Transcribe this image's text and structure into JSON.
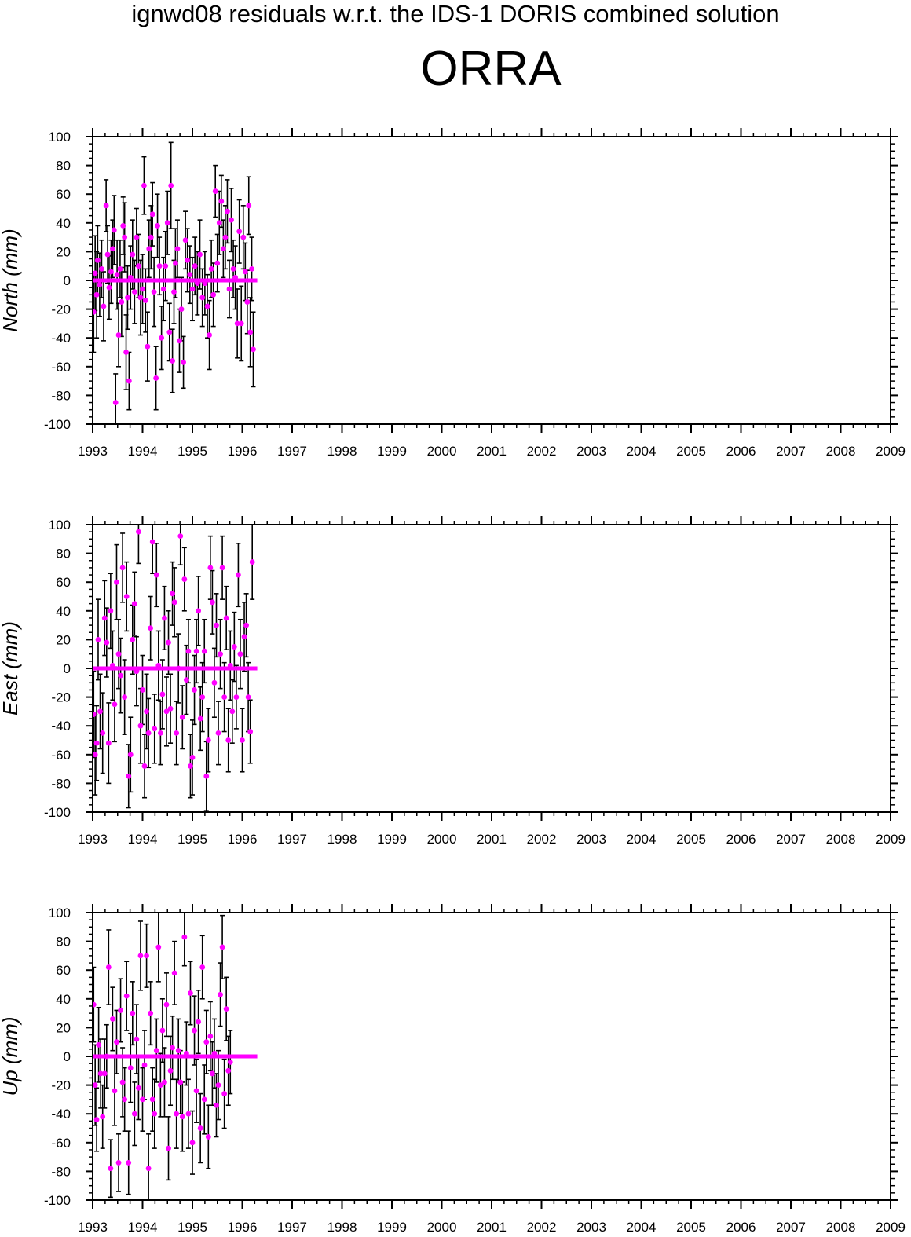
{
  "title": "ignwd08 residuals w.r.t. the IDS-1 DORIS combined solution",
  "station": "ORRA",
  "colors": {
    "marker": "#ff00ff",
    "error_bar": "#000000",
    "axes": "#000000"
  },
  "chart_data": [
    {
      "type": "scatter",
      "component": "North",
      "ylabel": "North (mm)",
      "xlim": [
        1993,
        2009
      ],
      "ylim": [
        -100,
        100
      ],
      "x_ticks": [
        "1993",
        "1994",
        "1995",
        "1996",
        "1997",
        "1998",
        "1999",
        "2000",
        "2001",
        "2002",
        "2003",
        "2004",
        "2005",
        "2006",
        "2007",
        "2008",
        "2009"
      ],
      "y_ticks": [
        "100",
        "80",
        "60",
        "40",
        "20",
        "0",
        "-20",
        "-40",
        "-60",
        "-80",
        "-100"
      ],
      "zero_line": [
        1993.0,
        1996.3
      ],
      "points": [
        [
          1993.02,
          -22,
          28
        ],
        [
          1993.05,
          5,
          26
        ],
        [
          1993.08,
          -10,
          30
        ],
        [
          1993.1,
          14,
          24
        ],
        [
          1993.14,
          -3,
          22
        ],
        [
          1993.18,
          8,
          20
        ],
        [
          1993.22,
          -18,
          24
        ],
        [
          1993.27,
          52,
          18
        ],
        [
          1993.3,
          18,
          20
        ],
        [
          1993.33,
          -5,
          22
        ],
        [
          1993.37,
          6,
          22
        ],
        [
          1993.4,
          22,
          20
        ],
        [
          1993.43,
          35,
          24
        ],
        [
          1993.46,
          -85,
          20
        ],
        [
          1993.49,
          4,
          24
        ],
        [
          1993.52,
          -38,
          22
        ],
        [
          1993.55,
          8,
          20
        ],
        [
          1993.58,
          -15,
          24
        ],
        [
          1993.61,
          38,
          20
        ],
        [
          1993.64,
          30,
          24
        ],
        [
          1993.67,
          -50,
          26
        ],
        [
          1993.7,
          -12,
          22
        ],
        [
          1993.73,
          -70,
          20
        ],
        [
          1993.76,
          2,
          22
        ],
        [
          1993.8,
          18,
          24
        ],
        [
          1993.84,
          -8,
          22
        ],
        [
          1993.88,
          30,
          20
        ],
        [
          1993.92,
          10,
          22
        ],
        [
          1993.96,
          -12,
          26
        ],
        [
          1994.0,
          -6,
          24
        ],
        [
          1994.03,
          66,
          20
        ],
        [
          1994.06,
          -14,
          22
        ],
        [
          1994.1,
          -46,
          24
        ],
        [
          1994.13,
          22,
          20
        ],
        [
          1994.17,
          30,
          22
        ],
        [
          1994.2,
          46,
          22
        ],
        [
          1994.23,
          -8,
          24
        ],
        [
          1994.27,
          -68,
          22
        ],
        [
          1994.3,
          38,
          22
        ],
        [
          1994.34,
          10,
          20
        ],
        [
          1994.38,
          -40,
          22
        ],
        [
          1994.42,
          -6,
          22
        ],
        [
          1994.46,
          10,
          24
        ],
        [
          1994.5,
          40,
          22
        ],
        [
          1994.54,
          -36,
          20
        ],
        [
          1994.57,
          66,
          30
        ],
        [
          1994.6,
          -56,
          22
        ],
        [
          1994.63,
          -8,
          22
        ],
        [
          1994.66,
          12,
          24
        ],
        [
          1994.7,
          22,
          20
        ],
        [
          1994.74,
          -42,
          22
        ],
        [
          1994.78,
          -20,
          22
        ],
        [
          1994.82,
          -57,
          18
        ],
        [
          1994.86,
          28,
          20
        ],
        [
          1994.9,
          14,
          22
        ],
        [
          1994.95,
          4,
          20
        ],
        [
          1995.0,
          -6,
          22
        ],
        [
          1995.05,
          10,
          20
        ],
        [
          1995.1,
          -2,
          22
        ],
        [
          1995.15,
          18,
          24
        ],
        [
          1995.2,
          -12,
          20
        ],
        [
          1995.25,
          -2,
          22
        ],
        [
          1995.3,
          -18,
          22
        ],
        [
          1995.34,
          -38,
          24
        ],
        [
          1995.38,
          8,
          20
        ],
        [
          1995.42,
          -10,
          22
        ],
        [
          1995.46,
          62,
          18
        ],
        [
          1995.5,
          12,
          20
        ],
        [
          1995.54,
          40,
          22
        ],
        [
          1995.58,
          55,
          18
        ],
        [
          1995.62,
          22,
          20
        ],
        [
          1995.66,
          30,
          22
        ],
        [
          1995.7,
          48,
          22
        ],
        [
          1995.74,
          -6,
          20
        ],
        [
          1995.78,
          42,
          22
        ],
        [
          1995.82,
          8,
          20
        ],
        [
          1995.86,
          2,
          22
        ],
        [
          1995.9,
          -30,
          24
        ],
        [
          1995.94,
          34,
          22
        ],
        [
          1995.98,
          -30,
          26
        ],
        [
          1996.02,
          30,
          22
        ],
        [
          1996.06,
          6,
          20
        ],
        [
          1996.1,
          -15,
          22
        ],
        [
          1996.13,
          52,
          20
        ],
        [
          1996.16,
          -36,
          24
        ],
        [
          1996.19,
          8,
          22
        ],
        [
          1996.22,
          -48,
          26
        ]
      ]
    },
    {
      "type": "scatter",
      "component": "East",
      "ylabel": "East (mm)",
      "xlim": [
        1993,
        2009
      ],
      "ylim": [
        -100,
        100
      ],
      "x_ticks": [
        "1993",
        "1994",
        "1995",
        "1996",
        "1997",
        "1998",
        "1999",
        "2000",
        "2001",
        "2002",
        "2003",
        "2004",
        "2005",
        "2006",
        "2007",
        "2008",
        "2009"
      ],
      "y_ticks": [
        "100",
        "80",
        "60",
        "40",
        "20",
        "0",
        "-20",
        "-40",
        "-60",
        "-80",
        "-100"
      ],
      "zero_line": [
        1993.0,
        1996.3
      ],
      "points": [
        [
          1993.02,
          -32,
          30
        ],
        [
          1993.05,
          -60,
          28
        ],
        [
          1993.08,
          -52,
          26
        ],
        [
          1993.11,
          20,
          28
        ],
        [
          1993.15,
          -30,
          26
        ],
        [
          1993.2,
          -45,
          28
        ],
        [
          1993.24,
          35,
          26
        ],
        [
          1993.28,
          18,
          24
        ],
        [
          1993.32,
          -52,
          28
        ],
        [
          1993.36,
          40,
          26
        ],
        [
          1993.4,
          2,
          24
        ],
        [
          1993.44,
          -25,
          26
        ],
        [
          1993.48,
          60,
          26
        ],
        [
          1993.52,
          10,
          24
        ],
        [
          1993.56,
          -5,
          26
        ],
        [
          1993.6,
          70,
          24
        ],
        [
          1993.64,
          -20,
          26
        ],
        [
          1993.68,
          50,
          24
        ],
        [
          1993.72,
          -75,
          22
        ],
        [
          1993.76,
          -60,
          26
        ],
        [
          1993.8,
          20,
          24
        ],
        [
          1993.84,
          45,
          22
        ],
        [
          1993.88,
          -2,
          24
        ],
        [
          1993.92,
          95,
          22
        ],
        [
          1993.96,
          -40,
          26
        ],
        [
          1994.0,
          -15,
          24
        ],
        [
          1994.04,
          -68,
          22
        ],
        [
          1994.08,
          -30,
          26
        ],
        [
          1994.12,
          -45,
          24
        ],
        [
          1994.16,
          28,
          22
        ],
        [
          1994.2,
          88,
          22
        ],
        [
          1994.24,
          -42,
          24
        ],
        [
          1994.28,
          65,
          22
        ],
        [
          1994.32,
          2,
          24
        ],
        [
          1994.36,
          -45,
          22
        ],
        [
          1994.4,
          -18,
          24
        ],
        [
          1994.44,
          35,
          22
        ],
        [
          1994.48,
          -30,
          24
        ],
        [
          1994.52,
          18,
          22
        ],
        [
          1994.56,
          -28,
          24
        ],
        [
          1994.6,
          52,
          22
        ],
        [
          1994.64,
          46,
          24
        ],
        [
          1994.68,
          -45,
          22
        ],
        [
          1994.72,
          0,
          24
        ],
        [
          1994.76,
          92,
          20
        ],
        [
          1994.8,
          -34,
          22
        ],
        [
          1994.84,
          62,
          22
        ],
        [
          1994.88,
          -8,
          24
        ],
        [
          1994.92,
          12,
          22
        ],
        [
          1994.96,
          -68,
          22
        ],
        [
          1995.0,
          -62,
          26
        ],
        [
          1995.04,
          -15,
          24
        ],
        [
          1995.08,
          12,
          22
        ],
        [
          1995.12,
          40,
          24
        ],
        [
          1995.16,
          -35,
          22
        ],
        [
          1995.2,
          -20,
          24
        ],
        [
          1995.24,
          12,
          22
        ],
        [
          1995.28,
          -75,
          24
        ],
        [
          1995.32,
          -50,
          22
        ],
        [
          1995.36,
          70,
          22
        ],
        [
          1995.4,
          46,
          22
        ],
        [
          1995.44,
          -10,
          24
        ],
        [
          1995.48,
          30,
          22
        ],
        [
          1995.52,
          -45,
          22
        ],
        [
          1995.56,
          10,
          24
        ],
        [
          1995.6,
          70,
          22
        ],
        [
          1995.64,
          -20,
          24
        ],
        [
          1995.68,
          35,
          22
        ],
        [
          1995.72,
          -50,
          22
        ],
        [
          1995.76,
          2,
          24
        ],
        [
          1995.8,
          -30,
          22
        ],
        [
          1995.84,
          15,
          24
        ],
        [
          1995.88,
          -20,
          22
        ],
        [
          1995.92,
          65,
          22
        ],
        [
          1995.96,
          10,
          24
        ],
        [
          1996.0,
          -50,
          22
        ],
        [
          1996.04,
          22,
          24
        ],
        [
          1996.08,
          30,
          22
        ],
        [
          1996.12,
          -20,
          24
        ],
        [
          1996.16,
          -44,
          22
        ],
        [
          1996.2,
          74,
          26
        ]
      ]
    },
    {
      "type": "scatter",
      "component": "Up",
      "ylabel": "Up (mm)",
      "xlim": [
        1993,
        2009
      ],
      "ylim": [
        -100,
        100
      ],
      "x_ticks": [
        "1993",
        "1994",
        "1995",
        "1996",
        "1997",
        "1998",
        "1999",
        "2000",
        "2001",
        "2002",
        "2003",
        "2004",
        "2005",
        "2006",
        "2007",
        "2008",
        "2009"
      ],
      "y_ticks": [
        "100",
        "80",
        "60",
        "40",
        "20",
        "0",
        "-20",
        "-40",
        "-60",
        "-80",
        "-100"
      ],
      "zero_line": [
        1993.0,
        1996.3
      ],
      "points": [
        [
          1993.02,
          36,
          26
        ],
        [
          1993.05,
          -20,
          28
        ],
        [
          1993.08,
          -44,
          22
        ],
        [
          1993.12,
          8,
          26
        ],
        [
          1993.16,
          -12,
          24
        ],
        [
          1993.2,
          -42,
          22
        ],
        [
          1993.24,
          -12,
          24
        ],
        [
          1993.28,
          0,
          22
        ],
        [
          1993.32,
          62,
          26
        ],
        [
          1993.36,
          -78,
          20
        ],
        [
          1993.4,
          26,
          22
        ],
        [
          1993.44,
          -24,
          24
        ],
        [
          1993.48,
          10,
          22
        ],
        [
          1993.52,
          -74,
          20
        ],
        [
          1993.56,
          32,
          22
        ],
        [
          1993.6,
          -18,
          24
        ],
        [
          1993.64,
          -30,
          22
        ],
        [
          1993.68,
          42,
          24
        ],
        [
          1993.72,
          -74,
          22
        ],
        [
          1993.76,
          -8,
          24
        ],
        [
          1993.8,
          30,
          22
        ],
        [
          1993.84,
          -40,
          22
        ],
        [
          1993.88,
          12,
          24
        ],
        [
          1993.92,
          -22,
          22
        ],
        [
          1993.96,
          70,
          24
        ],
        [
          1994.0,
          -30,
          22
        ],
        [
          1994.04,
          -6,
          24
        ],
        [
          1994.08,
          70,
          22
        ],
        [
          1994.12,
          -78,
          24
        ],
        [
          1994.16,
          30,
          22
        ],
        [
          1994.2,
          -30,
          22
        ],
        [
          1994.24,
          -40,
          24
        ],
        [
          1994.28,
          4,
          22
        ],
        [
          1994.32,
          76,
          24
        ],
        [
          1994.36,
          -20,
          22
        ],
        [
          1994.4,
          18,
          22
        ],
        [
          1994.44,
          -18,
          24
        ],
        [
          1994.48,
          36,
          22
        ],
        [
          1994.52,
          -64,
          22
        ],
        [
          1994.56,
          -10,
          24
        ],
        [
          1994.6,
          6,
          22
        ],
        [
          1994.64,
          58,
          22
        ],
        [
          1994.68,
          -40,
          24
        ],
        [
          1994.72,
          4,
          22
        ],
        [
          1994.76,
          -18,
          22
        ],
        [
          1994.8,
          -42,
          24
        ],
        [
          1994.84,
          83,
          20
        ],
        [
          1994.88,
          2,
          22
        ],
        [
          1994.92,
          -40,
          24
        ],
        [
          1994.96,
          44,
          22
        ],
        [
          1995.0,
          -60,
          22
        ],
        [
          1995.04,
          18,
          24
        ],
        [
          1995.08,
          -24,
          22
        ],
        [
          1995.12,
          24,
          22
        ],
        [
          1995.16,
          -50,
          24
        ],
        [
          1995.2,
          62,
          22
        ],
        [
          1995.24,
          -30,
          24
        ],
        [
          1995.28,
          10,
          22
        ],
        [
          1995.32,
          -56,
          22
        ],
        [
          1995.36,
          14,
          24
        ],
        [
          1995.4,
          -12,
          22
        ],
        [
          1995.44,
          2,
          24
        ],
        [
          1995.48,
          -34,
          22
        ],
        [
          1995.52,
          -20,
          24
        ],
        [
          1995.56,
          43,
          22
        ],
        [
          1995.6,
          76,
          22
        ],
        [
          1995.64,
          -26,
          24
        ],
        [
          1995.68,
          33,
          22
        ],
        [
          1995.72,
          -10,
          24
        ],
        [
          1995.76,
          -4,
          22
        ]
      ]
    }
  ]
}
